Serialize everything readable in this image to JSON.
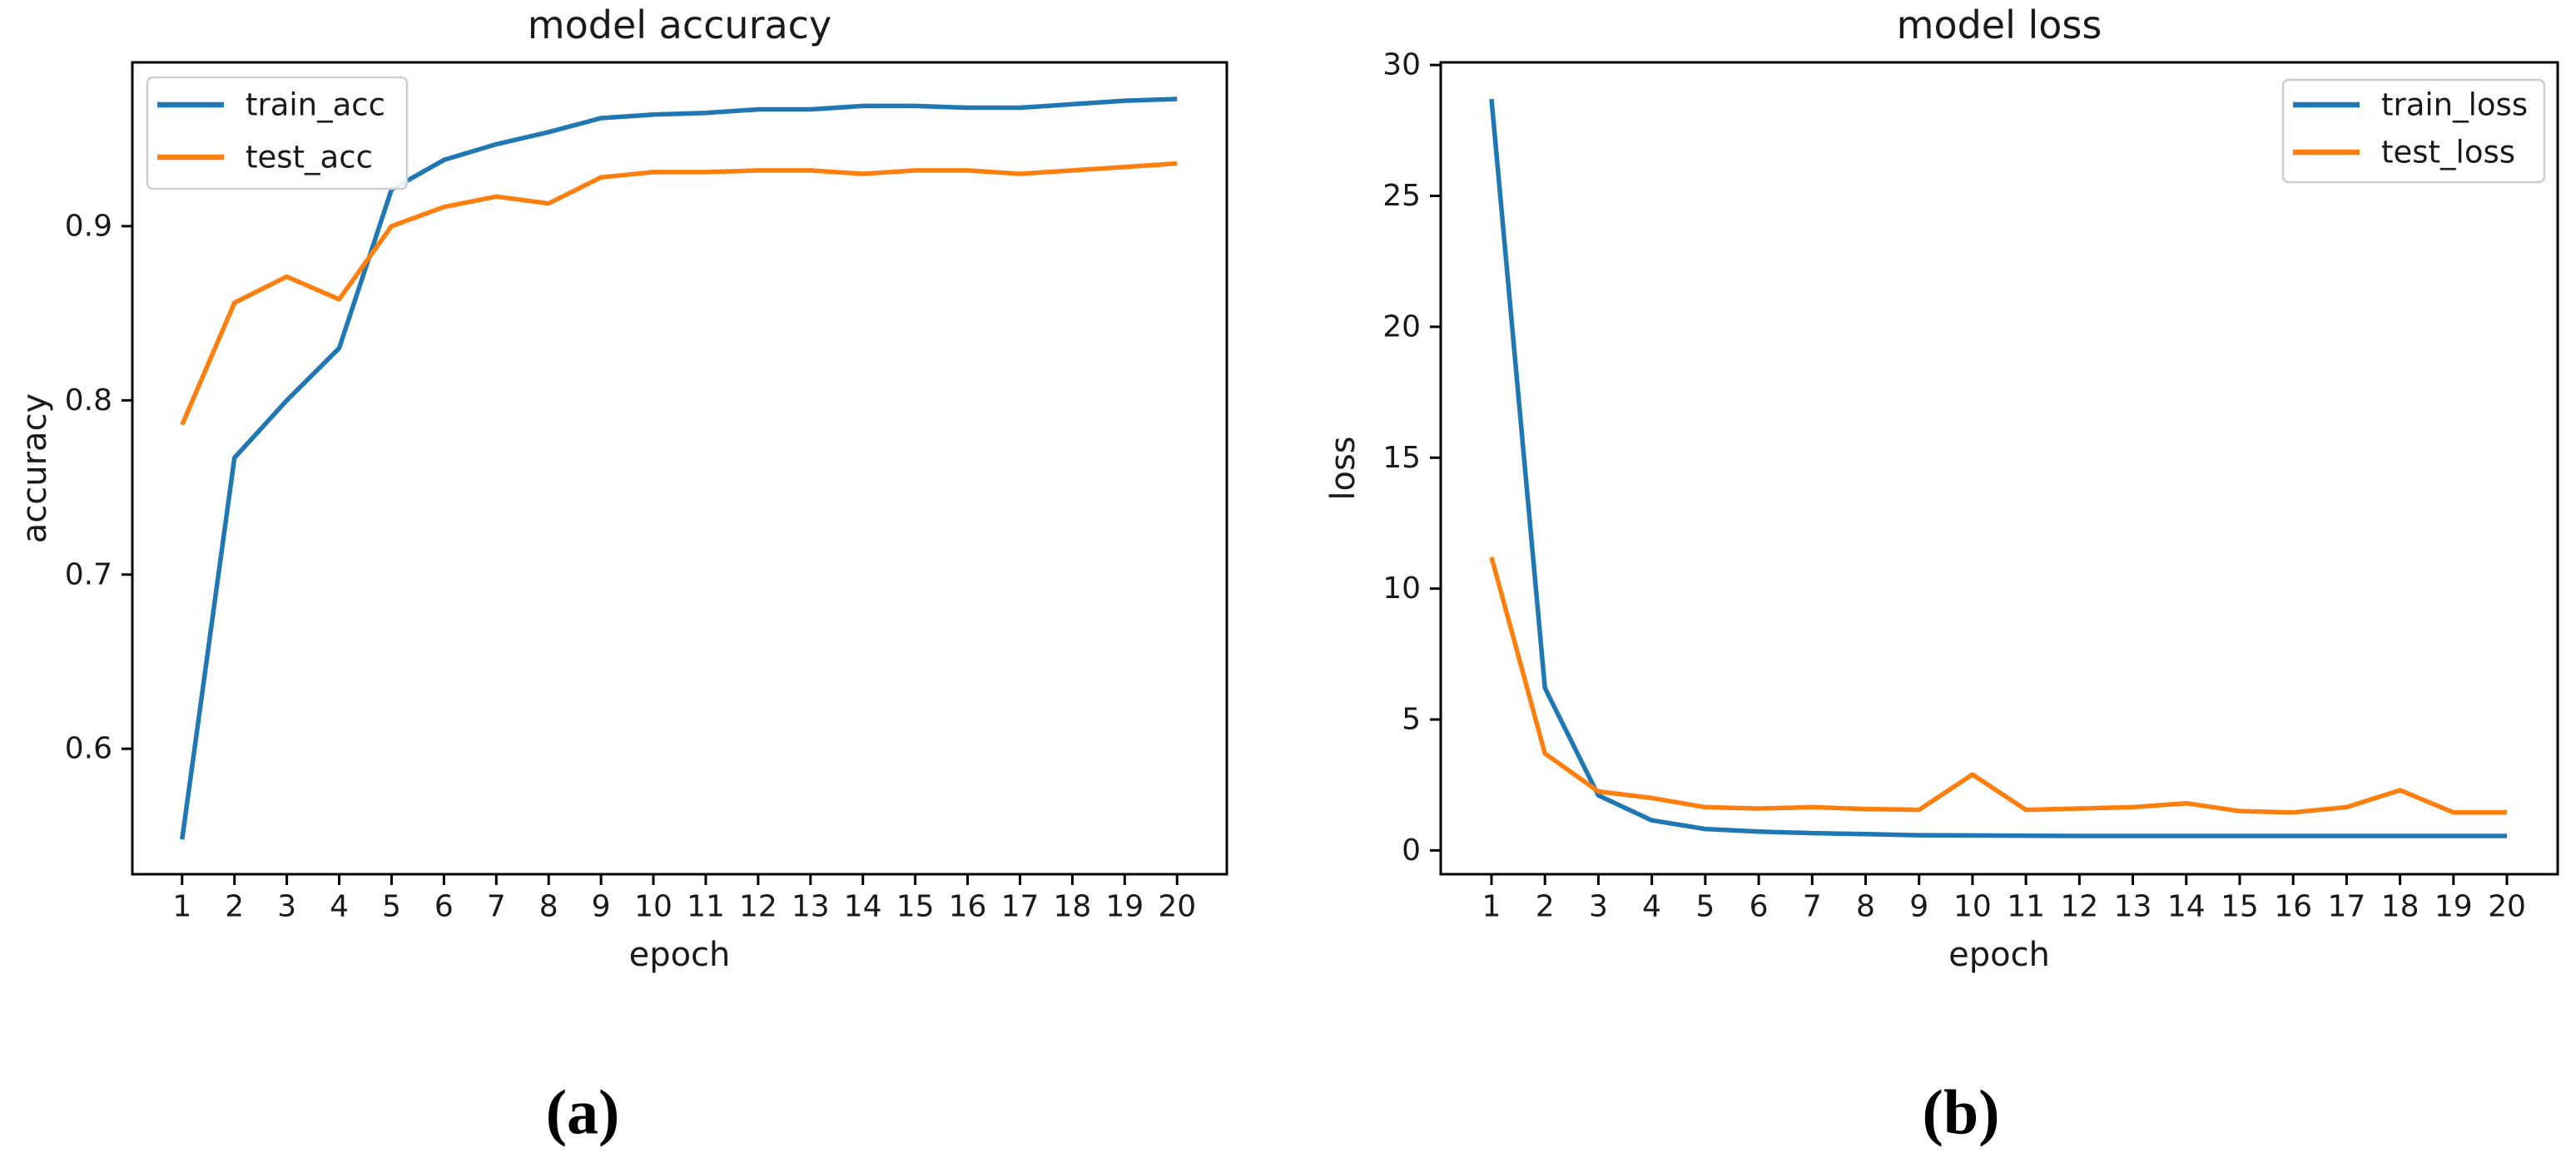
{
  "figure": {
    "captions": [
      {
        "label": "(a)"
      },
      {
        "label": "(b)"
      }
    ]
  },
  "chart_data": [
    {
      "type": "line",
      "title": "model accuracy",
      "xlabel": "epoch",
      "ylabel": "accuracy",
      "x": [
        1,
        2,
        3,
        4,
        5,
        6,
        7,
        8,
        9,
        10,
        11,
        12,
        13,
        14,
        15,
        16,
        17,
        18,
        19,
        20
      ],
      "xticks": [
        1,
        2,
        3,
        4,
        5,
        6,
        7,
        8,
        9,
        10,
        11,
        12,
        13,
        14,
        15,
        16,
        17,
        18,
        19,
        20
      ],
      "yticks": [
        0.6,
        0.7,
        0.8,
        0.9
      ],
      "ytick_labels": [
        "0.6",
        "0.7",
        "0.8",
        "0.9"
      ],
      "xlim": [
        0.05,
        20.95
      ],
      "ylim": [
        0.528,
        0.994
      ],
      "grid": false,
      "legend_position": "upper left",
      "series": [
        {
          "name": "train_acc",
          "color": "#1f77b4",
          "values": [
            0.548,
            0.767,
            0.8,
            0.83,
            0.921,
            0.938,
            0.947,
            0.954,
            0.962,
            0.964,
            0.965,
            0.967,
            0.967,
            0.969,
            0.969,
            0.968,
            0.968,
            0.97,
            0.972,
            0.973
          ]
        },
        {
          "name": "test_acc",
          "color": "#ff7f0e",
          "values": [
            0.786,
            0.856,
            0.871,
            0.858,
            0.9,
            0.911,
            0.917,
            0.913,
            0.928,
            0.931,
            0.931,
            0.932,
            0.932,
            0.93,
            0.932,
            0.932,
            0.93,
            0.932,
            0.934,
            0.936
          ]
        }
      ]
    },
    {
      "type": "line",
      "title": "model loss",
      "xlabel": "epoch",
      "ylabel": "loss",
      "x": [
        1,
        2,
        3,
        4,
        5,
        6,
        7,
        8,
        9,
        10,
        11,
        12,
        13,
        14,
        15,
        16,
        17,
        18,
        19,
        20
      ],
      "xticks": [
        1,
        2,
        3,
        4,
        5,
        6,
        7,
        8,
        9,
        10,
        11,
        12,
        13,
        14,
        15,
        16,
        17,
        18,
        19,
        20
      ],
      "yticks": [
        0,
        5,
        10,
        15,
        20,
        25,
        30
      ],
      "ytick_labels": [
        "0",
        "5",
        "10",
        "15",
        "20",
        "25",
        "30"
      ],
      "xlim": [
        0.05,
        20.95
      ],
      "ylim": [
        -0.91,
        30.1
      ],
      "grid": false,
      "legend_position": "upper right",
      "series": [
        {
          "name": "train_loss",
          "color": "#1f77b4",
          "values": [
            28.7,
            6.2,
            2.1,
            1.15,
            0.82,
            0.72,
            0.66,
            0.62,
            0.58,
            0.57,
            0.56,
            0.55,
            0.55,
            0.55,
            0.55,
            0.55,
            0.55,
            0.55,
            0.55,
            0.55
          ]
        },
        {
          "name": "test_loss",
          "color": "#ff7f0e",
          "values": [
            11.2,
            3.7,
            2.25,
            2.0,
            1.65,
            1.6,
            1.65,
            1.58,
            1.55,
            2.9,
            1.55,
            1.6,
            1.65,
            1.8,
            1.5,
            1.45,
            1.65,
            2.3,
            1.45,
            1.45
          ]
        }
      ]
    }
  ]
}
